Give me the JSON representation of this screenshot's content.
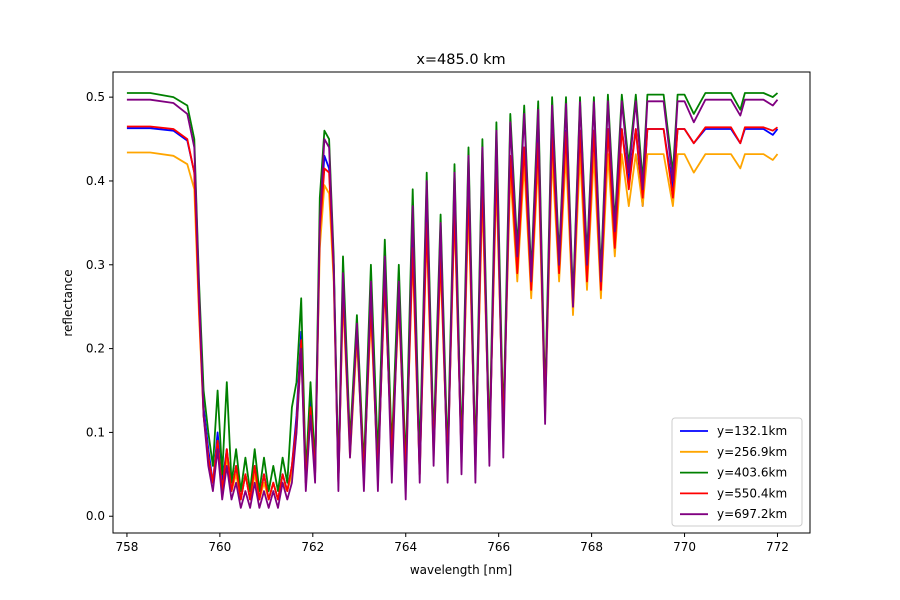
{
  "chart_data": {
    "type": "line",
    "title": "x=485.0 km",
    "xlabel": "wavelength [nm]",
    "ylabel": "reflectance",
    "xlim": [
      757.7,
      772.7
    ],
    "ylim": [
      -0.02,
      0.53
    ],
    "xticks": [
      758,
      760,
      762,
      764,
      766,
      768,
      770,
      772
    ],
    "yticks": [
      0.0,
      0.1,
      0.2,
      0.3,
      0.4,
      0.5
    ],
    "ytick_labels": [
      "0.0",
      "0.1",
      "0.2",
      "0.3",
      "0.4",
      "0.5"
    ],
    "grid": false,
    "legend_position": "lower-right",
    "x": [
      758.0,
      758.5,
      759.0,
      759.3,
      759.45,
      759.55,
      759.65,
      759.75,
      759.85,
      759.95,
      760.05,
      760.15,
      760.25,
      760.35,
      760.45,
      760.55,
      760.65,
      760.75,
      760.85,
      760.95,
      761.05,
      761.15,
      761.25,
      761.35,
      761.45,
      761.55,
      761.65,
      761.75,
      761.85,
      761.95,
      762.05,
      762.15,
      762.25,
      762.35,
      762.45,
      762.55,
      762.65,
      762.8,
      762.95,
      763.1,
      763.25,
      763.4,
      763.55,
      763.7,
      763.85,
      764.0,
      764.15,
      764.3,
      764.45,
      764.6,
      764.75,
      764.9,
      765.05,
      765.2,
      765.35,
      765.5,
      765.65,
      765.8,
      765.95,
      766.1,
      766.25,
      766.4,
      766.55,
      766.7,
      766.85,
      767.0,
      767.15,
      767.3,
      767.45,
      767.6,
      767.75,
      767.9,
      768.05,
      768.2,
      768.35,
      768.5,
      768.65,
      768.8,
      768.95,
      769.1,
      769.2,
      769.35,
      769.55,
      769.75,
      769.85,
      770.0,
      770.2,
      770.45,
      770.6,
      770.8,
      771.0,
      771.2,
      771.3,
      771.5,
      771.7,
      771.9,
      772.0
    ],
    "series": [
      {
        "name": "y=132.1km",
        "color": "#0000ff",
        "values": [
          0.463,
          0.463,
          0.46,
          0.448,
          0.41,
          0.25,
          0.13,
          0.08,
          0.04,
          0.1,
          0.04,
          0.08,
          0.03,
          0.06,
          0.02,
          0.05,
          0.02,
          0.06,
          0.02,
          0.05,
          0.02,
          0.04,
          0.02,
          0.05,
          0.03,
          0.06,
          0.12,
          0.22,
          0.04,
          0.14,
          0.05,
          0.35,
          0.43,
          0.415,
          0.3,
          0.04,
          0.28,
          0.08,
          0.22,
          0.05,
          0.26,
          0.06,
          0.3,
          0.07,
          0.27,
          0.05,
          0.33,
          0.06,
          0.37,
          0.08,
          0.32,
          0.06,
          0.38,
          0.07,
          0.39,
          0.06,
          0.4,
          0.08,
          0.42,
          0.1,
          0.43,
          0.3,
          0.44,
          0.27,
          0.45,
          0.13,
          0.455,
          0.3,
          0.46,
          0.25,
          0.46,
          0.29,
          0.46,
          0.28,
          0.462,
          0.33,
          0.462,
          0.4,
          0.462,
          0.37,
          0.462,
          0.462,
          0.462,
          0.39,
          0.462,
          0.462,
          0.445,
          0.462,
          0.462,
          0.462,
          0.462,
          0.445,
          0.462,
          0.462,
          0.462,
          0.455,
          0.462
        ]
      },
      {
        "name": "y=256.9km",
        "color": "#ffa500",
        "values": [
          0.434,
          0.434,
          0.43,
          0.42,
          0.39,
          0.24,
          0.12,
          0.07,
          0.04,
          0.09,
          0.03,
          0.07,
          0.03,
          0.05,
          0.02,
          0.05,
          0.02,
          0.05,
          0.02,
          0.04,
          0.02,
          0.04,
          0.02,
          0.04,
          0.03,
          0.05,
          0.1,
          0.2,
          0.04,
          0.13,
          0.05,
          0.32,
          0.395,
          0.385,
          0.28,
          0.04,
          0.26,
          0.07,
          0.21,
          0.05,
          0.24,
          0.05,
          0.28,
          0.07,
          0.25,
          0.05,
          0.31,
          0.05,
          0.34,
          0.07,
          0.3,
          0.06,
          0.36,
          0.07,
          0.37,
          0.06,
          0.38,
          0.08,
          0.4,
          0.1,
          0.41,
          0.28,
          0.42,
          0.26,
          0.425,
          0.12,
          0.43,
          0.28,
          0.432,
          0.24,
          0.432,
          0.27,
          0.432,
          0.26,
          0.432,
          0.31,
          0.432,
          0.37,
          0.432,
          0.37,
          0.432,
          0.432,
          0.432,
          0.37,
          0.432,
          0.432,
          0.41,
          0.432,
          0.432,
          0.432,
          0.432,
          0.415,
          0.432,
          0.432,
          0.432,
          0.425,
          0.432
        ]
      },
      {
        "name": "y=403.6km",
        "color": "#008000",
        "values": [
          0.505,
          0.505,
          0.5,
          0.49,
          0.45,
          0.28,
          0.15,
          0.1,
          0.06,
          0.15,
          0.05,
          0.16,
          0.04,
          0.08,
          0.03,
          0.07,
          0.03,
          0.08,
          0.03,
          0.07,
          0.03,
          0.06,
          0.03,
          0.07,
          0.04,
          0.13,
          0.16,
          0.26,
          0.05,
          0.16,
          0.06,
          0.38,
          0.46,
          0.45,
          0.31,
          0.05,
          0.31,
          0.09,
          0.24,
          0.06,
          0.3,
          0.07,
          0.33,
          0.08,
          0.3,
          0.06,
          0.39,
          0.07,
          0.41,
          0.09,
          0.36,
          0.07,
          0.42,
          0.08,
          0.44,
          0.07,
          0.45,
          0.09,
          0.47,
          0.11,
          0.48,
          0.32,
          0.49,
          0.29,
          0.495,
          0.14,
          0.5,
          0.31,
          0.5,
          0.26,
          0.5,
          0.31,
          0.5,
          0.29,
          0.503,
          0.35,
          0.503,
          0.42,
          0.503,
          0.4,
          0.503,
          0.503,
          0.503,
          0.41,
          0.503,
          0.503,
          0.48,
          0.505,
          0.505,
          0.505,
          0.505,
          0.485,
          0.505,
          0.505,
          0.505,
          0.5,
          0.505
        ]
      },
      {
        "name": "y=550.4km",
        "color": "#ff0000",
        "values": [
          0.465,
          0.465,
          0.462,
          0.45,
          0.41,
          0.25,
          0.12,
          0.07,
          0.04,
          0.09,
          0.03,
          0.08,
          0.03,
          0.06,
          0.02,
          0.05,
          0.02,
          0.06,
          0.02,
          0.05,
          0.02,
          0.04,
          0.02,
          0.05,
          0.03,
          0.06,
          0.11,
          0.21,
          0.04,
          0.13,
          0.05,
          0.34,
          0.415,
          0.41,
          0.29,
          0.04,
          0.27,
          0.08,
          0.22,
          0.05,
          0.25,
          0.05,
          0.28,
          0.07,
          0.26,
          0.05,
          0.32,
          0.05,
          0.35,
          0.08,
          0.31,
          0.06,
          0.37,
          0.07,
          0.39,
          0.06,
          0.4,
          0.08,
          0.42,
          0.1,
          0.43,
          0.29,
          0.44,
          0.27,
          0.445,
          0.13,
          0.455,
          0.29,
          0.458,
          0.25,
          0.46,
          0.28,
          0.46,
          0.27,
          0.462,
          0.32,
          0.462,
          0.39,
          0.462,
          0.38,
          0.462,
          0.462,
          0.462,
          0.38,
          0.462,
          0.462,
          0.445,
          0.464,
          0.464,
          0.464,
          0.464,
          0.445,
          0.464,
          0.464,
          0.464,
          0.46,
          0.464
        ]
      },
      {
        "name": "y=697.2km",
        "color": "#800080",
        "values": [
          0.497,
          0.497,
          0.493,
          0.48,
          0.44,
          0.27,
          0.12,
          0.06,
          0.03,
          0.08,
          0.02,
          0.06,
          0.02,
          0.04,
          0.01,
          0.03,
          0.01,
          0.04,
          0.01,
          0.03,
          0.01,
          0.03,
          0.01,
          0.04,
          0.02,
          0.04,
          0.1,
          0.2,
          0.03,
          0.12,
          0.04,
          0.35,
          0.45,
          0.44,
          0.3,
          0.03,
          0.29,
          0.07,
          0.23,
          0.03,
          0.28,
          0.03,
          0.31,
          0.04,
          0.28,
          0.02,
          0.37,
          0.04,
          0.4,
          0.06,
          0.35,
          0.04,
          0.41,
          0.05,
          0.43,
          0.04,
          0.44,
          0.06,
          0.46,
          0.07,
          0.47,
          0.31,
          0.48,
          0.28,
          0.485,
          0.11,
          0.49,
          0.3,
          0.492,
          0.25,
          0.494,
          0.3,
          0.494,
          0.28,
          0.495,
          0.34,
          0.495,
          0.41,
          0.495,
          0.39,
          0.495,
          0.495,
          0.495,
          0.4,
          0.495,
          0.495,
          0.47,
          0.497,
          0.497,
          0.497,
          0.497,
          0.478,
          0.497,
          0.497,
          0.497,
          0.49,
          0.497
        ]
      }
    ]
  }
}
